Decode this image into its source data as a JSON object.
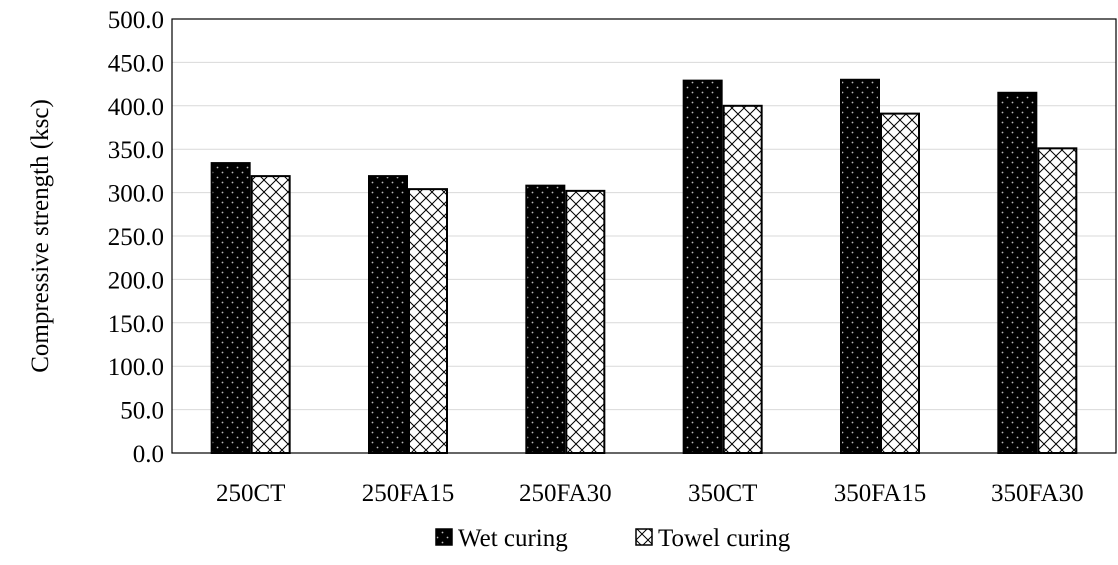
{
  "chart_data": {
    "type": "bar",
    "title": "",
    "xlabel": "",
    "ylabel": "Compressive strength (ksc)",
    "ylim": [
      0,
      500
    ],
    "yticks": [
      "0.0",
      "50.0",
      "100.0",
      "150.0",
      "200.0",
      "250.0",
      "300.0",
      "350.0",
      "400.0",
      "450.0",
      "500.0"
    ],
    "grid": true,
    "legend_position": "bottom",
    "categories": [
      "250CT",
      "250FA15",
      "250FA30",
      "350CT",
      "350FA15",
      "350FA30"
    ],
    "series": [
      {
        "name": "Wet curing",
        "values": [
          334,
          319,
          308,
          429,
          430,
          415
        ],
        "fill": "#000000",
        "pattern": "dots"
      },
      {
        "name": "Towel curing",
        "values": [
          319,
          304,
          302,
          400,
          391,
          351
        ],
        "fill": "#ffffff",
        "pattern": "crosshatch"
      }
    ]
  }
}
